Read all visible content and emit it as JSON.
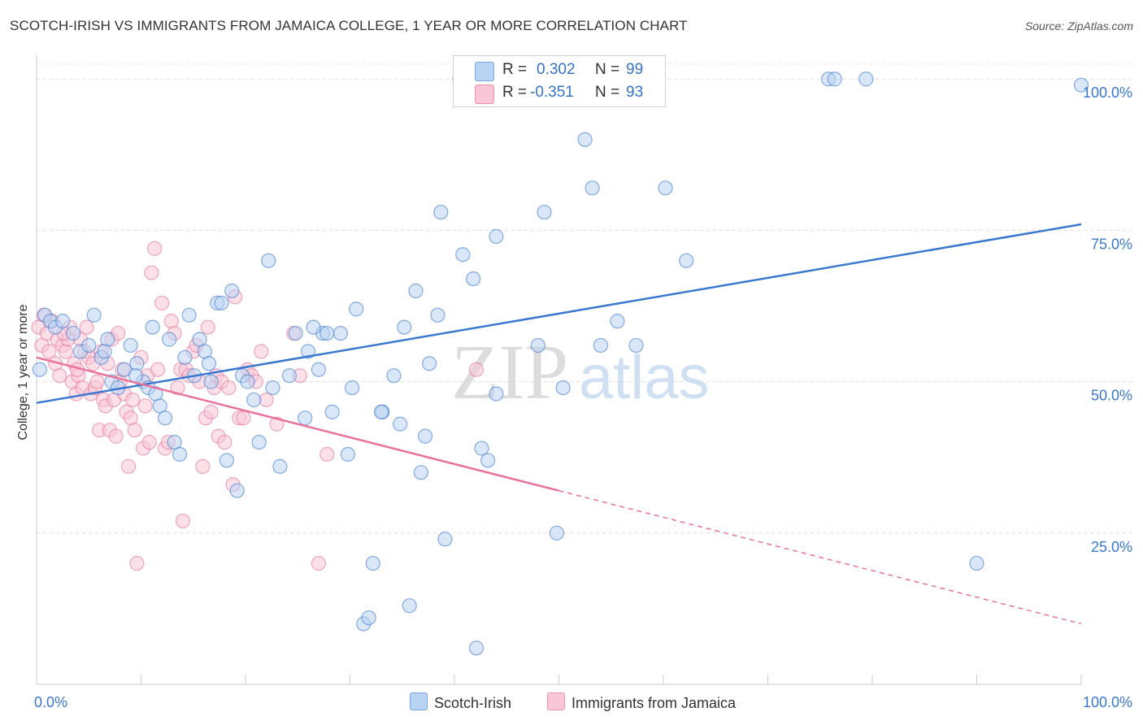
{
  "header": {
    "title": "SCOTCH-IRISH VS IMMIGRANTS FROM JAMAICA COLLEGE, 1 YEAR OR MORE CORRELATION CHART",
    "source": "Source: ZipAtlas.com"
  },
  "stats": {
    "rows": [
      {
        "r_label": "R =",
        "r_value": "0.302",
        "n_label": "N =",
        "n_value": "99"
      },
      {
        "r_label": "R =",
        "r_value": "-0.351",
        "n_label": "N =",
        "n_value": "93"
      }
    ]
  },
  "watermark": {
    "zip": "ZIP",
    "atlas": "atlas"
  },
  "colors": {
    "scotch_irish": "#3a78cf",
    "jamaica": "#e8729a",
    "blue_fill": "#b9d3f3",
    "pink_fill": "#f8c6d6"
  },
  "chart_data": {
    "type": "scatter",
    "title": "SCOTCH-IRISH VS IMMIGRANTS FROM JAMAICA COLLEGE, 1 YEAR OR MORE CORRELATION CHART",
    "xlabel": "",
    "ylabel": "College, 1 year or more",
    "xlim": [
      0,
      100
    ],
    "ylim": [
      0,
      105
    ],
    "x_tick_labels": [
      "0.0%",
      "100.0%"
    ],
    "y_tick_labels": [
      "25.0%",
      "50.0%",
      "75.0%",
      "100.0%"
    ],
    "y_ticks": [
      25,
      50,
      75,
      100
    ],
    "grid": true,
    "legend": [
      "Scotch-Irish",
      "Immigrants from Jamaica"
    ],
    "series": [
      {
        "name": "Scotch-Irish",
        "color": "#3a78cf",
        "trend": {
          "x0": 0,
          "y0": 46.5,
          "x1": 100,
          "y1": 76,
          "solid_to": 100
        },
        "points": [
          [
            0.3,
            52
          ],
          [
            0.8,
            61
          ],
          [
            1.3,
            60
          ],
          [
            1.8,
            59
          ],
          [
            2.5,
            60
          ],
          [
            3.5,
            58
          ],
          [
            4.2,
            55
          ],
          [
            5,
            56
          ],
          [
            5.5,
            61
          ],
          [
            6.2,
            54
          ],
          [
            6.8,
            57
          ],
          [
            7.2,
            50
          ],
          [
            7.8,
            49
          ],
          [
            8.4,
            52
          ],
          [
            9,
            56
          ],
          [
            9.6,
            53
          ],
          [
            10.2,
            50
          ],
          [
            10.7,
            49
          ],
          [
            11.1,
            59
          ],
          [
            11.4,
            48
          ],
          [
            11.8,
            46
          ],
          [
            12.3,
            44
          ],
          [
            12.7,
            57
          ],
          [
            13.2,
            40
          ],
          [
            13.7,
            38
          ],
          [
            14.2,
            54
          ],
          [
            14.6,
            61
          ],
          [
            15.1,
            51
          ],
          [
            15.6,
            57
          ],
          [
            16.1,
            55
          ],
          [
            16.7,
            50
          ],
          [
            17.3,
            63
          ],
          [
            17.7,
            63
          ],
          [
            18.2,
            37
          ],
          [
            18.7,
            65
          ],
          [
            19.2,
            32
          ],
          [
            19.7,
            51
          ],
          [
            20.2,
            50
          ],
          [
            20.8,
            47
          ],
          [
            21.3,
            40
          ],
          [
            22.2,
            70
          ],
          [
            22.6,
            49
          ],
          [
            23.3,
            36
          ],
          [
            24.2,
            51
          ],
          [
            24.8,
            58
          ],
          [
            25.7,
            44
          ],
          [
            26,
            55
          ],
          [
            27.4,
            58
          ],
          [
            27.8,
            58
          ],
          [
            28.3,
            45
          ],
          [
            29.1,
            58
          ],
          [
            29.8,
            38
          ],
          [
            30.2,
            49
          ],
          [
            30.6,
            62
          ],
          [
            31.3,
            10
          ],
          [
            31.8,
            11
          ],
          [
            32.2,
            20
          ],
          [
            33.1,
            45
          ],
          [
            34.2,
            51
          ],
          [
            34.8,
            43
          ],
          [
            35.2,
            59
          ],
          [
            35.7,
            13
          ],
          [
            36.3,
            65
          ],
          [
            36.8,
            35
          ],
          [
            37.2,
            41
          ],
          [
            37.6,
            53
          ],
          [
            38.4,
            61
          ],
          [
            38.7,
            78
          ],
          [
            39.1,
            24
          ],
          [
            40.5,
            100
          ],
          [
            40.8,
            71
          ],
          [
            41.8,
            67
          ],
          [
            42.1,
            6
          ],
          [
            42.6,
            39
          ],
          [
            43.2,
            37
          ],
          [
            44,
            74
          ],
          [
            48,
            56
          ],
          [
            48.6,
            78
          ],
          [
            49.8,
            25
          ],
          [
            50.4,
            49
          ],
          [
            52.5,
            90
          ],
          [
            53.2,
            82
          ],
          [
            54,
            56
          ],
          [
            55.6,
            60
          ],
          [
            57.4,
            56
          ],
          [
            60.2,
            82
          ],
          [
            62.2,
            70
          ],
          [
            75.8,
            100
          ],
          [
            76.4,
            100
          ],
          [
            79.4,
            100
          ],
          [
            90,
            20
          ],
          [
            100,
            99
          ],
          [
            33,
            45
          ],
          [
            27,
            52
          ],
          [
            16.5,
            53
          ],
          [
            9.5,
            51
          ],
          [
            6.5,
            55
          ],
          [
            26.5,
            59
          ],
          [
            44,
            48
          ]
        ]
      },
      {
        "name": "Immigrants from Jamaica",
        "color": "#e8729a",
        "trend": {
          "x0": 0,
          "y0": 54,
          "x1": 100,
          "y1": 10,
          "solid_to": 50
        },
        "points": [
          [
            0.2,
            59
          ],
          [
            0.5,
            56
          ],
          [
            0.7,
            61
          ],
          [
            1,
            58
          ],
          [
            1.2,
            55
          ],
          [
            1.5,
            60
          ],
          [
            1.8,
            53
          ],
          [
            2,
            57
          ],
          [
            2.2,
            51
          ],
          [
            2.5,
            56
          ],
          [
            2.8,
            55
          ],
          [
            3,
            57
          ],
          [
            3.2,
            59
          ],
          [
            3.4,
            50
          ],
          [
            3.6,
            53
          ],
          [
            3.8,
            48
          ],
          [
            4,
            51
          ],
          [
            4.2,
            57
          ],
          [
            4.4,
            49
          ],
          [
            4.6,
            55
          ],
          [
            4.8,
            59
          ],
          [
            5,
            54
          ],
          [
            5.2,
            48
          ],
          [
            5.4,
            53
          ],
          [
            5.6,
            49
          ],
          [
            5.8,
            50
          ],
          [
            6,
            42
          ],
          [
            6.2,
            55
          ],
          [
            6.4,
            47
          ],
          [
            6.6,
            46
          ],
          [
            6.8,
            53
          ],
          [
            7,
            42
          ],
          [
            7.2,
            57
          ],
          [
            7.4,
            47
          ],
          [
            7.6,
            41
          ],
          [
            7.8,
            58
          ],
          [
            8,
            50
          ],
          [
            8.2,
            52
          ],
          [
            8.4,
            48
          ],
          [
            8.6,
            45
          ],
          [
            8.8,
            36
          ],
          [
            9,
            44
          ],
          [
            9.2,
            47
          ],
          [
            9.4,
            42
          ],
          [
            9.6,
            20
          ],
          [
            10,
            54
          ],
          [
            10.2,
            39
          ],
          [
            10.4,
            46
          ],
          [
            10.6,
            51
          ],
          [
            10.8,
            40
          ],
          [
            11,
            68
          ],
          [
            11.3,
            72
          ],
          [
            11.6,
            52
          ],
          [
            12,
            63
          ],
          [
            12.3,
            39
          ],
          [
            12.6,
            40
          ],
          [
            12.9,
            60
          ],
          [
            13.2,
            58
          ],
          [
            13.5,
            49
          ],
          [
            13.8,
            52
          ],
          [
            14,
            27
          ],
          [
            14.3,
            52
          ],
          [
            14.6,
            51
          ],
          [
            15,
            55
          ],
          [
            15.3,
            56
          ],
          [
            15.6,
            50
          ],
          [
            15.9,
            36
          ],
          [
            16.2,
            44
          ],
          [
            16.4,
            59
          ],
          [
            16.7,
            45
          ],
          [
            17,
            49
          ],
          [
            17.2,
            51
          ],
          [
            17.4,
            41
          ],
          [
            17.7,
            50
          ],
          [
            18,
            40
          ],
          [
            18.4,
            49
          ],
          [
            18.8,
            33
          ],
          [
            19,
            64
          ],
          [
            19.4,
            44
          ],
          [
            19.8,
            44
          ],
          [
            20.2,
            52
          ],
          [
            20.6,
            51
          ],
          [
            21,
            50
          ],
          [
            21.5,
            55
          ],
          [
            22,
            47
          ],
          [
            23,
            43
          ],
          [
            24.6,
            58
          ],
          [
            25.2,
            51
          ],
          [
            27,
            20
          ],
          [
            27.8,
            38
          ],
          [
            42.1,
            52
          ],
          [
            3.9,
            52
          ],
          [
            2.6,
            58
          ]
        ]
      }
    ]
  },
  "legend": {
    "items": [
      "Scotch-Irish",
      "Immigrants from Jamaica"
    ]
  }
}
